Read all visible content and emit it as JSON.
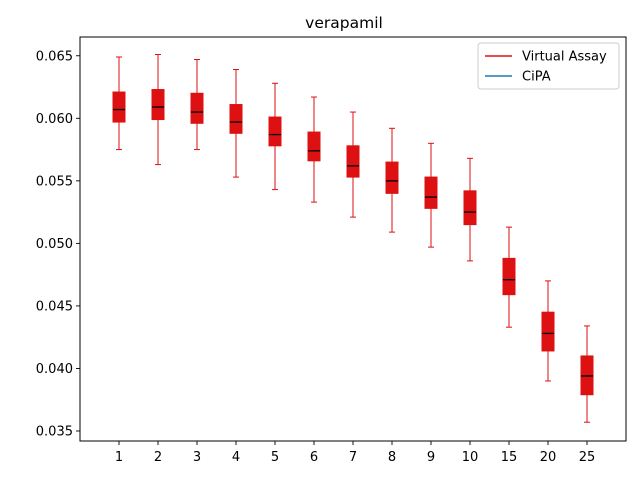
{
  "chart_data": {
    "type": "box",
    "title": "verapamil",
    "xlabel": "",
    "ylabel": "",
    "categories": [
      "1",
      "2",
      "3",
      "4",
      "5",
      "6",
      "7",
      "8",
      "9",
      "10",
      "15",
      "20",
      "25"
    ],
    "ylim": [
      0.0342,
      0.0665
    ],
    "yticks": [
      0.035,
      0.04,
      0.045,
      0.05,
      0.055,
      0.06,
      0.065
    ],
    "ytick_labels": [
      "0.035",
      "0.040",
      "0.045",
      "0.050",
      "0.055",
      "0.060",
      "0.065"
    ],
    "legend_position": "top-right",
    "series": [
      {
        "name": "Virtual Assay",
        "color": "#dd1111",
        "median_color": "#000000",
        "boxes": [
          {
            "whislo": 0.0575,
            "q1": 0.0597,
            "med": 0.0607,
            "q3": 0.0621,
            "whishi": 0.0649
          },
          {
            "whislo": 0.0563,
            "q1": 0.0599,
            "med": 0.0609,
            "q3": 0.0623,
            "whishi": 0.0651
          },
          {
            "whislo": 0.0575,
            "q1": 0.0596,
            "med": 0.0605,
            "q3": 0.062,
            "whishi": 0.0647
          },
          {
            "whislo": 0.0553,
            "q1": 0.0588,
            "med": 0.0597,
            "q3": 0.0611,
            "whishi": 0.0639
          },
          {
            "whislo": 0.0543,
            "q1": 0.0578,
            "med": 0.0587,
            "q3": 0.0601,
            "whishi": 0.0628
          },
          {
            "whislo": 0.0533,
            "q1": 0.0566,
            "med": 0.0574,
            "q3": 0.0589,
            "whishi": 0.0617
          },
          {
            "whislo": 0.0521,
            "q1": 0.0553,
            "med": 0.0562,
            "q3": 0.0578,
            "whishi": 0.0605
          },
          {
            "whislo": 0.0509,
            "q1": 0.054,
            "med": 0.055,
            "q3": 0.0565,
            "whishi": 0.0592
          },
          {
            "whislo": 0.0497,
            "q1": 0.0528,
            "med": 0.0537,
            "q3": 0.0553,
            "whishi": 0.058
          },
          {
            "whislo": 0.0486,
            "q1": 0.0515,
            "med": 0.0525,
            "q3": 0.0542,
            "whishi": 0.0568
          },
          {
            "whislo": 0.0433,
            "q1": 0.0459,
            "med": 0.0471,
            "q3": 0.0488,
            "whishi": 0.0513
          },
          {
            "whislo": 0.039,
            "q1": 0.0414,
            "med": 0.0428,
            "q3": 0.0445,
            "whishi": 0.047
          },
          {
            "whislo": 0.0357,
            "q1": 0.0379,
            "med": 0.0394,
            "q3": 0.041,
            "whishi": 0.0434
          }
        ]
      },
      {
        "name": "CiPA",
        "color": "#1f77b4",
        "boxes": []
      }
    ]
  }
}
